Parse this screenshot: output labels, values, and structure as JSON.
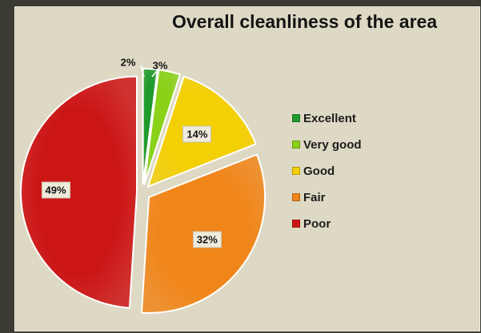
{
  "chart_data": {
    "type": "pie",
    "title": "Overall cleanliness of the area",
    "categories": [
      "Excellent",
      "Very good",
      "Good",
      "Fair",
      "Poor"
    ],
    "values": [
      2,
      3,
      14,
      32,
      49
    ],
    "labels": [
      "2%",
      "3%",
      "14%",
      "32%",
      "49%"
    ],
    "colors": [
      "#1f9a2c",
      "#8ad21a",
      "#f3cf06",
      "#f0851a",
      "#cc1616"
    ],
    "legend_position": "right",
    "exploded": true
  }
}
